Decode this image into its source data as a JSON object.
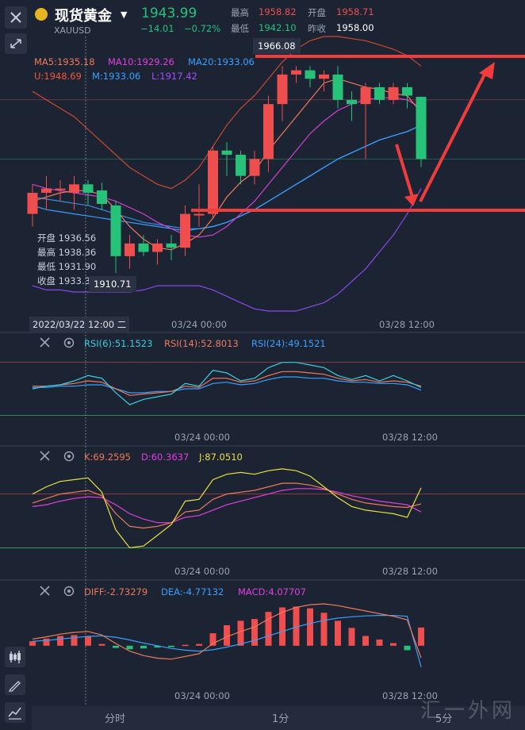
{
  "header": {
    "title": "现货黄金",
    "symbol": "XAUUSD",
    "price": "1943.99",
    "change": "−14.01",
    "change_pct": "−0.72%",
    "high_label": "最高",
    "high": "1958.82",
    "open_label": "开盘",
    "open": "1958.71",
    "low_label": "最低",
    "low": "1942.10",
    "prev_label": "昨收",
    "prev": "1958.00"
  },
  "main_legend": {
    "ma5": "MA5:1935.18",
    "ma10": "MA10:1929.26",
    "ma20": "MA20:1933.06",
    "boll_u": "U:1948.69",
    "boll_m": "M:1933.06",
    "boll_l": "L:1917.42"
  },
  "tooltip": {
    "open": "开盘 1936.56",
    "high": "最高 1938.36",
    "low": "最低 1931.90",
    "close": "收盘 1933.36",
    "datetime": "2022/03/22 12:00 二"
  },
  "price_tags": {
    "top": "1966.08",
    "bottom": "1910.71"
  },
  "time_labels": {
    "t1": "03/24 00:00",
    "t2": "03/28 12:00"
  },
  "rsi": {
    "r6": "RSI(6):51.1523",
    "r14": "RSI(14):52.8013",
    "r24": "RSI(24):49.1521"
  },
  "kdj": {
    "k": "K:69.2595",
    "d": "D:60.3637",
    "j": "J:87.0510"
  },
  "macd": {
    "diff": "DIFF:-2.73279",
    "dea": "DEA:-4.77132",
    "macd": "MACD:4.07707"
  },
  "tabs": {
    "t1": "分时",
    "t2": "1分",
    "t3": "5分"
  },
  "watermark": "汇一外网",
  "colors": {
    "bg": "#1c2333",
    "up": "#ef4e4e",
    "down": "#27c27a",
    "annotation": "#f03c3c"
  },
  "chart_data": {
    "type": "candlestick",
    "candles": [
      {
        "o": 1931,
        "h": 1938,
        "l": 1928,
        "c": 1936
      },
      {
        "o": 1936,
        "h": 1940,
        "l": 1932,
        "c": 1937
      },
      {
        "o": 1937,
        "h": 1939,
        "l": 1934,
        "c": 1937
      },
      {
        "o": 1936,
        "h": 1940,
        "l": 1932,
        "c": 1938
      },
      {
        "o": 1938,
        "h": 1939,
        "l": 1933,
        "c": 1936
      },
      {
        "o": 1936.56,
        "h": 1938.36,
        "l": 1931.9,
        "c": 1933.36
      },
      {
        "o": 1933,
        "h": 1934,
        "l": 1917,
        "c": 1921
      },
      {
        "o": 1921,
        "h": 1926,
        "l": 1918,
        "c": 1924
      },
      {
        "o": 1924,
        "h": 1926,
        "l": 1921,
        "c": 1922
      },
      {
        "o": 1922,
        "h": 1925,
        "l": 1919,
        "c": 1924
      },
      {
        "o": 1924,
        "h": 1926,
        "l": 1920,
        "c": 1923
      },
      {
        "o": 1923,
        "h": 1933,
        "l": 1921,
        "c": 1931
      },
      {
        "o": 1931,
        "h": 1938,
        "l": 1928,
        "c": 1931
      },
      {
        "o": 1931,
        "h": 1947,
        "l": 1930,
        "c": 1946
      },
      {
        "o": 1946,
        "h": 1948,
        "l": 1940,
        "c": 1945
      },
      {
        "o": 1945,
        "h": 1946,
        "l": 1938,
        "c": 1940
      },
      {
        "o": 1940,
        "h": 1946,
        "l": 1938,
        "c": 1944
      },
      {
        "o": 1944,
        "h": 1959,
        "l": 1941,
        "c": 1957
      },
      {
        "o": 1957,
        "h": 1966,
        "l": 1953,
        "c": 1964
      },
      {
        "o": 1964,
        "h": 1966,
        "l": 1962,
        "c": 1965
      },
      {
        "o": 1965,
        "h": 1966,
        "l": 1961,
        "c": 1963
      },
      {
        "o": 1963,
        "h": 1965,
        "l": 1960,
        "c": 1964
      },
      {
        "o": 1964,
        "h": 1966,
        "l": 1956,
        "c": 1958
      },
      {
        "o": 1958,
        "h": 1960,
        "l": 1953,
        "c": 1957
      },
      {
        "o": 1957,
        "h": 1962,
        "l": 1944,
        "c": 1961
      },
      {
        "o": 1961,
        "h": 1962,
        "l": 1957,
        "c": 1958
      },
      {
        "o": 1958,
        "h": 1962,
        "l": 1957,
        "c": 1961
      },
      {
        "o": 1961,
        "h": 1962,
        "l": 1956,
        "c": 1959
      },
      {
        "o": 1958.71,
        "h": 1958.82,
        "l": 1942.1,
        "c": 1943.99
      }
    ],
    "ylim": [
      1908,
      1973
    ],
    "ma5": [
      1934,
      1935,
      1936,
      1936.5,
      1936.5,
      1935.5,
      1932,
      1928,
      1925,
      1923,
      1922.5,
      1924,
      1926,
      1930,
      1935,
      1938.5,
      1941,
      1946,
      1950,
      1954,
      1958,
      1962,
      1963,
      1962,
      1961,
      1960.5,
      1959.5,
      1959,
      1955
    ],
    "ma10": [
      1938,
      1937,
      1936.5,
      1936,
      1935.5,
      1935,
      1934,
      1932.5,
      1931,
      1929,
      1927.5,
      1926,
      1925.5,
      1926,
      1928,
      1931,
      1934,
      1938,
      1942,
      1946,
      1950,
      1953,
      1955.5,
      1957,
      1958,
      1958.5,
      1958.5,
      1958,
      1956
    ],
    "ma20": [
      1933,
      1932,
      1931.5,
      1931,
      1930.5,
      1930,
      1929.5,
      1929,
      1928.5,
      1928,
      1927.5,
      1927,
      1927.5,
      1928,
      1929,
      1930.5,
      1932,
      1934,
      1936,
      1938,
      1940,
      1942,
      1944,
      1945.5,
      1947,
      1948.5,
      1949.5,
      1950.5,
      1952
    ],
    "boll_u": [
      1960,
      1958,
      1956,
      1954,
      1951,
      1948,
      1945,
      1942,
      1940,
      1938,
      1937,
      1939,
      1942,
      1947,
      1952,
      1956,
      1959,
      1963,
      1967,
      1970,
      1972,
      1973,
      1973,
      1972.5,
      1972,
      1971,
      1970,
      1968.5,
      1966
    ],
    "boll_l": [
      1914,
      1913,
      1913,
      1912.5,
      1912.5,
      1912.5,
      1912.5,
      1912.5,
      1913,
      1914,
      1914,
      1914,
      1914,
      1913,
      1911.5,
      1910,
      1908.5,
      1908,
      1908,
      1908,
      1909,
      1910,
      1912,
      1915,
      1918,
      1922,
      1926,
      1931,
      1937
    ],
    "boll_m": [
      1935,
      1934.5,
      1934,
      1933.5,
      1933,
      1932,
      1931,
      1930,
      1929,
      1928.5,
      1928,
      1927.5,
      1927.5,
      1928,
      1929,
      1930.5,
      1932,
      1934,
      1936,
      1938,
      1940,
      1942,
      1944,
      1945.5,
      1947,
      1948.5,
      1949.5,
      1950.5,
      1952
    ],
    "rsi6": [
      50,
      52,
      53,
      56,
      60,
      58,
      47,
      38,
      42,
      44,
      46,
      54,
      52,
      64,
      62,
      56,
      58,
      66,
      70,
      70,
      68,
      66,
      60,
      57,
      60,
      56,
      60,
      56,
      51
    ],
    "rsi14": [
      52,
      52,
      53,
      54,
      56,
      55,
      50,
      45,
      46,
      47,
      48,
      52,
      51,
      58,
      58,
      55,
      56,
      60,
      63,
      63,
      62,
      61,
      58,
      56,
      57,
      55,
      56,
      55,
      52
    ],
    "rsi24": [
      51,
      51,
      52,
      52,
      53,
      53,
      50,
      47,
      47,
      48,
      48,
      50,
      50,
      54,
      55,
      53,
      54,
      57,
      59,
      59,
      58,
      58,
      56,
      55,
      55,
      54,
      54,
      53,
      49
    ],
    "rsi_ylim": [
      20,
      80
    ],
    "kdj_k": [
      70,
      75,
      80,
      82,
      84,
      78,
      58,
      44,
      42,
      44,
      48,
      60,
      62,
      74,
      80,
      82,
      84,
      88,
      92,
      92,
      90,
      86,
      80,
      74,
      70,
      68,
      66,
      65,
      69
    ],
    "kdj_d": [
      66,
      68,
      72,
      75,
      77,
      76,
      68,
      58,
      52,
      48,
      48,
      54,
      56,
      62,
      68,
      72,
      76,
      80,
      84,
      86,
      86,
      85,
      82,
      78,
      75,
      72,
      70,
      68,
      60
    ],
    "kdj_j": [
      80,
      88,
      94,
      96,
      98,
      82,
      40,
      20,
      22,
      34,
      46,
      72,
      74,
      96,
      102,
      104,
      102,
      106,
      108,
      106,
      100,
      88,
      76,
      66,
      62,
      60,
      58,
      54,
      87
    ],
    "kdj_ylim": [
      0,
      115
    ],
    "macd_diff": [
      1.5,
      2,
      2.6,
      3.0,
      3.2,
      2.4,
      0.5,
      -1.2,
      -2.2,
      -2.8,
      -3.0,
      -2.4,
      -1.8,
      0.5,
      2,
      3.2,
      4.2,
      6,
      7.5,
      8.6,
      9.2,
      9.4,
      9.0,
      8.4,
      7.8,
      7.2,
      6.6,
      5.8,
      -2.73
    ],
    "macd_dea": [
      1.0,
      1.2,
      1.5,
      1.8,
      2.1,
      2.2,
      1.9,
      1.3,
      0.6,
      0,
      -0.6,
      -1.0,
      -1.2,
      -0.9,
      -0.3,
      0.4,
      1.2,
      2.2,
      3.2,
      4.2,
      5.0,
      5.7,
      6.2,
      6.5,
      6.7,
      6.8,
      6.8,
      6.6,
      -4.77
    ],
    "macd_hist": [
      1.0,
      1.6,
      2.2,
      2.4,
      2.2,
      0.4,
      -0.5,
      -0.8,
      -0.6,
      -0.4,
      -0.3,
      0.2,
      0.4,
      2.8,
      4.6,
      5.6,
      6.0,
      7.6,
      8.6,
      8.8,
      8.4,
      7.4,
      5.6,
      4.0,
      2.2,
      1.4,
      0.6,
      -1.0,
      4.08
    ],
    "macd_ylim": [
      -10,
      11
    ]
  }
}
